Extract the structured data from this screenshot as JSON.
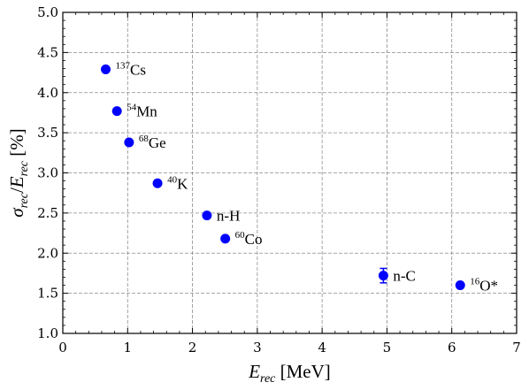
{
  "chart_data": {
    "type": "scatter",
    "xlabel": {
      "main": "E",
      "sub": "rec",
      "unit": " [MeV]"
    },
    "ylabel": {
      "main1": "σ",
      "sub1": "rec",
      "slash": "/",
      "main2": "E",
      "sub2": "rec",
      "unit": " [%]"
    },
    "xlim": [
      0,
      7
    ],
    "ylim": [
      1.0,
      5.0
    ],
    "xticks": [
      0,
      1,
      2,
      3,
      4,
      5,
      6,
      7
    ],
    "yticks": [
      1.0,
      1.5,
      2.0,
      2.5,
      3.0,
      3.5,
      4.0,
      4.5,
      5.0
    ],
    "ytick_labels": [
      "1.0",
      "1.5",
      "2.0",
      "2.5",
      "3.0",
      "3.5",
      "4.0",
      "4.5",
      "5.0"
    ],
    "grid": true,
    "marker_color": "#0000ff",
    "points": [
      {
        "x": 0.662,
        "y": 4.29,
        "sup": "137",
        "name": "Cs",
        "err": 0
      },
      {
        "x": 0.835,
        "y": 3.77,
        "sup": "54",
        "name": "Mn",
        "err": 0
      },
      {
        "x": 1.022,
        "y": 3.38,
        "sup": "68",
        "name": "Ge",
        "err": 0
      },
      {
        "x": 1.461,
        "y": 2.87,
        "sup": "40",
        "name": "K",
        "err": 0
      },
      {
        "x": 2.223,
        "y": 2.47,
        "sup": "",
        "name": "n-H",
        "err": 0
      },
      {
        "x": 2.506,
        "y": 2.18,
        "sup": "60",
        "name": "Co",
        "err": 0
      },
      {
        "x": 4.945,
        "y": 1.72,
        "sup": "",
        "name": "n-C",
        "err": 0.09
      },
      {
        "x": 6.13,
        "y": 1.6,
        "sup": "16",
        "name": "O*",
        "err": 0
      }
    ]
  }
}
